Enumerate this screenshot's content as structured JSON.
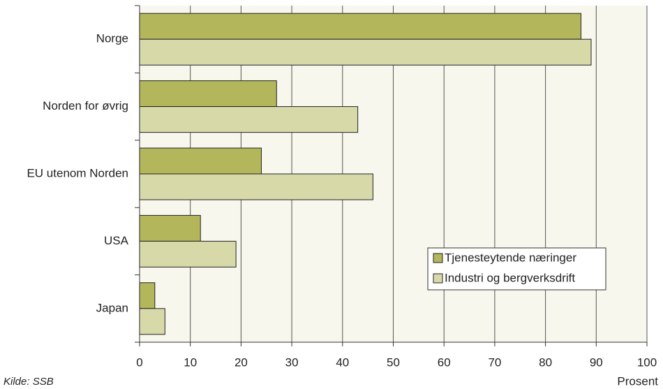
{
  "chart_data": {
    "type": "bar",
    "orientation": "horizontal",
    "categories": [
      "Norge",
      "Norden for øvrig",
      "EU utenom Norden",
      "USA",
      "Japan"
    ],
    "series": [
      {
        "name": "Tjenesteytende næringer",
        "color": "#b3b65a",
        "values": [
          87,
          27,
          24,
          12,
          3
        ]
      },
      {
        "name": "Industri og bergverksdrift",
        "color": "#d7d9a9",
        "values": [
          89,
          43,
          46,
          19,
          5
        ]
      }
    ],
    "xlim": [
      0,
      100
    ],
    "xticks": [
      0,
      10,
      20,
      30,
      40,
      50,
      60,
      70,
      80,
      90,
      100
    ],
    "x_label": "Prosent",
    "source": "Kilde: SSB",
    "grid": true,
    "legend": "lower right"
  }
}
